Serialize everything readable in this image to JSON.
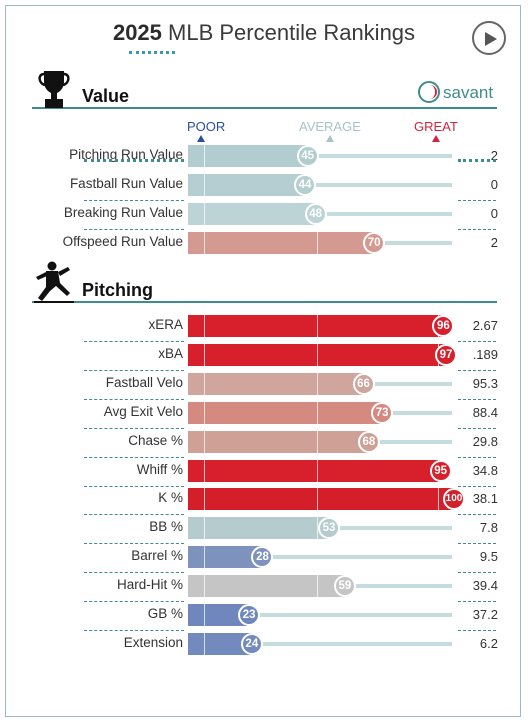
{
  "header": {
    "title_bold": "2025",
    "title_rest": "MLB Percentile Rankings"
  },
  "brand": {
    "name": "savant",
    "icon": "baseball-icon"
  },
  "scale": {
    "poor": "POOR",
    "average": "AVERAGE",
    "great": "GREAT",
    "colors": {
      "poor": "#2b4f9e",
      "average": "#a8c3c7",
      "great": "#d4243a"
    }
  },
  "sections": [
    {
      "title": "Value",
      "icon": "trophy-icon"
    },
    {
      "title": "Pitching",
      "icon": "pitcher-icon"
    }
  ],
  "value_rows": [
    {
      "label": "Pitching Run Value",
      "percentile": 45,
      "value": "2",
      "color": "#b2cdd0"
    },
    {
      "label": "Fastball Run Value",
      "percentile": 44,
      "value": "0",
      "color": "#b5ced1"
    },
    {
      "label": "Breaking Run Value",
      "percentile": 48,
      "value": "0",
      "color": "#bdd4d6"
    },
    {
      "label": "Offspeed Run Value",
      "percentile": 70,
      "value": "2",
      "color": "#d49a91"
    }
  ],
  "pitching_rows": [
    {
      "label": "xERA",
      "percentile": 96,
      "value": "2.67",
      "color": "#d7202c"
    },
    {
      "label": "xBA",
      "percentile": 97,
      "value": ".189",
      "color": "#d7202c"
    },
    {
      "label": "Fastball Velo",
      "percentile": 66,
      "value": "95.3",
      "color": "#cfa59d"
    },
    {
      "label": "Avg Exit Velo",
      "percentile": 73,
      "value": "88.4",
      "color": "#d48a80"
    },
    {
      "label": "Chase %",
      "percentile": 68,
      "value": "29.8",
      "color": "#cfa095"
    },
    {
      "label": "Whiff %",
      "percentile": 95,
      "value": "34.8",
      "color": "#d7202c"
    },
    {
      "label": "K %",
      "percentile": 100,
      "value": "38.1",
      "color": "#d41f2b"
    },
    {
      "label": "BB %",
      "percentile": 53,
      "value": "7.8",
      "color": "#b5cbcd"
    },
    {
      "label": "Barrel %",
      "percentile": 28,
      "value": "9.5",
      "color": "#7d92bd"
    },
    {
      "label": "Hard-Hit %",
      "percentile": 59,
      "value": "39.4",
      "color": "#c5c5c5"
    },
    {
      "label": "GB %",
      "percentile": 23,
      "value": "37.2",
      "color": "#6f87bc"
    },
    {
      "label": "Extension",
      "percentile": 24,
      "value": "6.2",
      "color": "#728abd"
    }
  ]
}
